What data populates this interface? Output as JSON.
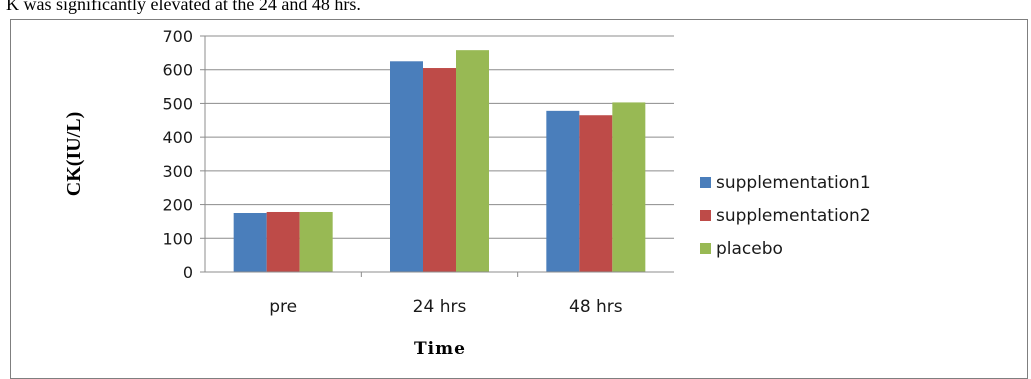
{
  "caption": "K was significantly elevated at the 24 and 48 hrs.",
  "chart_data": {
    "type": "bar",
    "title": "",
    "xlabel": "Time",
    "ylabel": "CK(IU/L)",
    "categories": [
      "pre",
      "24 hrs",
      "48 hrs"
    ],
    "ylim": [
      0,
      700
    ],
    "yticks": [
      0,
      100,
      200,
      300,
      400,
      500,
      600,
      700
    ],
    "grid": true,
    "legend": "right",
    "series": [
      {
        "name": "supplementation1",
        "color": "#4a7ebb",
        "values": [
          175,
          625,
          478
        ]
      },
      {
        "name": "supplementation2",
        "color": "#be4b48",
        "values": [
          178,
          605,
          465
        ]
      },
      {
        "name": "placebo",
        "color": "#98b954",
        "values": [
          178,
          658,
          503
        ]
      }
    ]
  }
}
